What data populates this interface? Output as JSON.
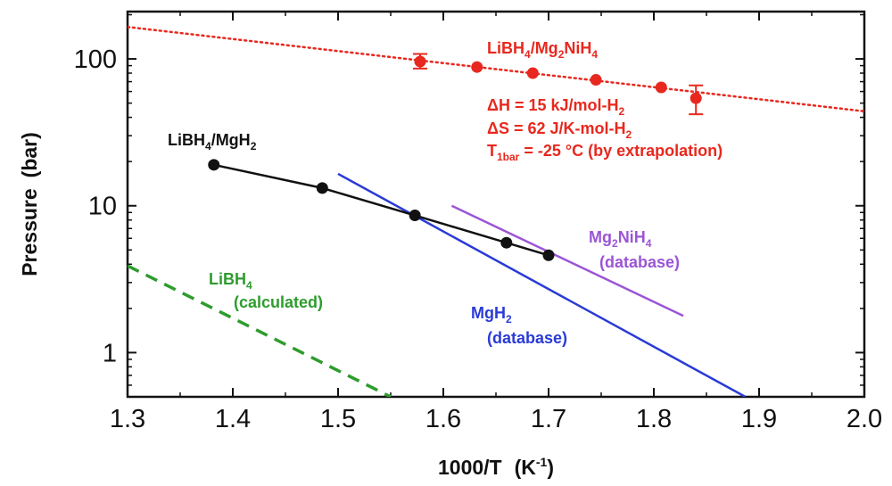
{
  "chart_data": {
    "type": "scatter",
    "xlabel": "1000/T",
    "xlabel_unit": "(K",
    "xlabel_unit_exp": "-1",
    "xlabel_unit_close": ")",
    "ylabel": "Pressure",
    "ylabel_unit": "(bar)",
    "xlim": [
      1.3,
      2.0
    ],
    "ylim": [
      0.5,
      210
    ],
    "yscale": "log",
    "xticks": [
      1.3,
      1.4,
      1.5,
      1.6,
      1.7,
      1.8,
      1.9,
      2.0
    ],
    "xtick_labels": [
      "1.3",
      "1.4",
      "1.5",
      "1.6",
      "1.7",
      "1.8",
      "1.9",
      "2.0"
    ],
    "yticks": [
      1,
      10,
      100
    ],
    "ytick_labels": [
      "1",
      "10",
      "100"
    ],
    "series": [
      {
        "name": "LiBH4/Mg2NiH4",
        "color": "#e8281e",
        "style": "points-with-dotted-fit",
        "points": [
          {
            "x": 1.578,
            "y": 96,
            "err": [
              86,
              108
            ]
          },
          {
            "x": 1.632,
            "y": 88
          },
          {
            "x": 1.685,
            "y": 80
          },
          {
            "x": 1.745,
            "y": 72
          },
          {
            "x": 1.807,
            "y": 64
          },
          {
            "x": 1.84,
            "y": 54,
            "err": [
              42,
              66
            ]
          }
        ],
        "fit": {
          "x": [
            1.3,
            2.0
          ],
          "y": [
            165,
            44
          ]
        }
      },
      {
        "name": "LiBH4/MgH2",
        "color": "#111111",
        "style": "line-markers",
        "points": [
          {
            "x": 1.382,
            "y": 19
          },
          {
            "x": 1.485,
            "y": 13.2
          },
          {
            "x": 1.573,
            "y": 8.6
          },
          {
            "x": 1.66,
            "y": 5.6
          },
          {
            "x": 1.7,
            "y": 4.6
          }
        ]
      },
      {
        "name": "MgH2 (database)",
        "color": "#2a3bd6",
        "style": "solid",
        "line": {
          "x": [
            1.5,
            1.887
          ],
          "y": [
            16.5,
            0.5
          ]
        }
      },
      {
        "name": "Mg2NiH4 (database)",
        "color": "#9b55d6",
        "style": "solid",
        "line": {
          "x": [
            1.608,
            1.828
          ],
          "y": [
            10,
            1.78
          ]
        }
      },
      {
        "name": "LiBH4 (calculated)",
        "color": "#2e9c2e",
        "style": "dashed",
        "line": {
          "x": [
            1.3,
            1.55
          ],
          "y": [
            3.9,
            0.5
          ]
        }
      }
    ],
    "annotations": {
      "mg2nih4_pair": {
        "main": "LiBH",
        "sub1": "4",
        "mid": "/Mg",
        "sub2": "2",
        "end": "NiH",
        "sub3": "4",
        "color": "#e8281e"
      },
      "dh": {
        "main": "ΔH = 15 kJ/mol-H",
        "sub": "2",
        "color": "#e8281e"
      },
      "ds": {
        "main": "ΔS = 62 J/K-mol-H",
        "sub": "2",
        "color": "#e8281e"
      },
      "t1bar": {
        "main": "T",
        "sub": "1bar",
        "end": " = -25 °C (by extrapolation)",
        "color": "#e8281e"
      },
      "mgh2_pair": {
        "main": "LiBH",
        "sub1": "4",
        "mid": "/MgH",
        "sub2": "2",
        "color": "#111111"
      },
      "mg2nih4_db": {
        "main": "Mg",
        "sub1": "2",
        "end": "NiH",
        "sub2": "4",
        "line2": "(database)",
        "color": "#9b55d6"
      },
      "mgh2_db": {
        "main": "MgH",
        "sub1": "2",
        "line2": "(database)",
        "color": "#2a3bd6"
      },
      "libh4_calc": {
        "main": "LiBH",
        "sub1": "4",
        "line2": "(calculated)",
        "color": "#2e9c2e"
      }
    }
  }
}
